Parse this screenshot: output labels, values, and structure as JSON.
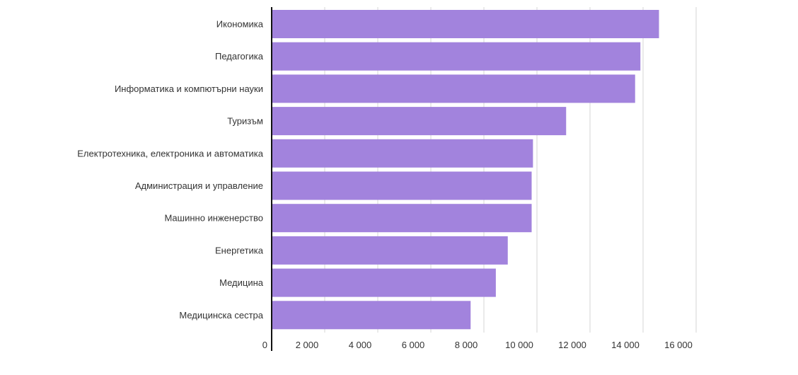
{
  "chart_data": {
    "type": "bar",
    "orientation": "horizontal",
    "categories": [
      "Икономика",
      "Педагогика",
      "Информатика и компютърни науки",
      "Туризъм",
      "Електротехника, електроника и автоматика",
      "Администрация и управление",
      "Машинно инженерство",
      "Енергетика",
      "Медицина",
      "Медицинска сестра"
    ],
    "values": [
      14600,
      13900,
      13700,
      11100,
      9850,
      9800,
      9800,
      8900,
      8450,
      7500
    ],
    "xlim": [
      0,
      16000
    ],
    "xticks": [
      0,
      2000,
      4000,
      6000,
      8000,
      10000,
      12000,
      14000,
      16000
    ],
    "xtick_labels": [
      "0",
      "2 000",
      "4 000",
      "6 000",
      "8 000",
      "10 000",
      "12 000",
      "14 000",
      "16 000"
    ],
    "grid": true,
    "bar_color": "#a283dd",
    "title": "",
    "xlabel": "",
    "ylabel": ""
  }
}
